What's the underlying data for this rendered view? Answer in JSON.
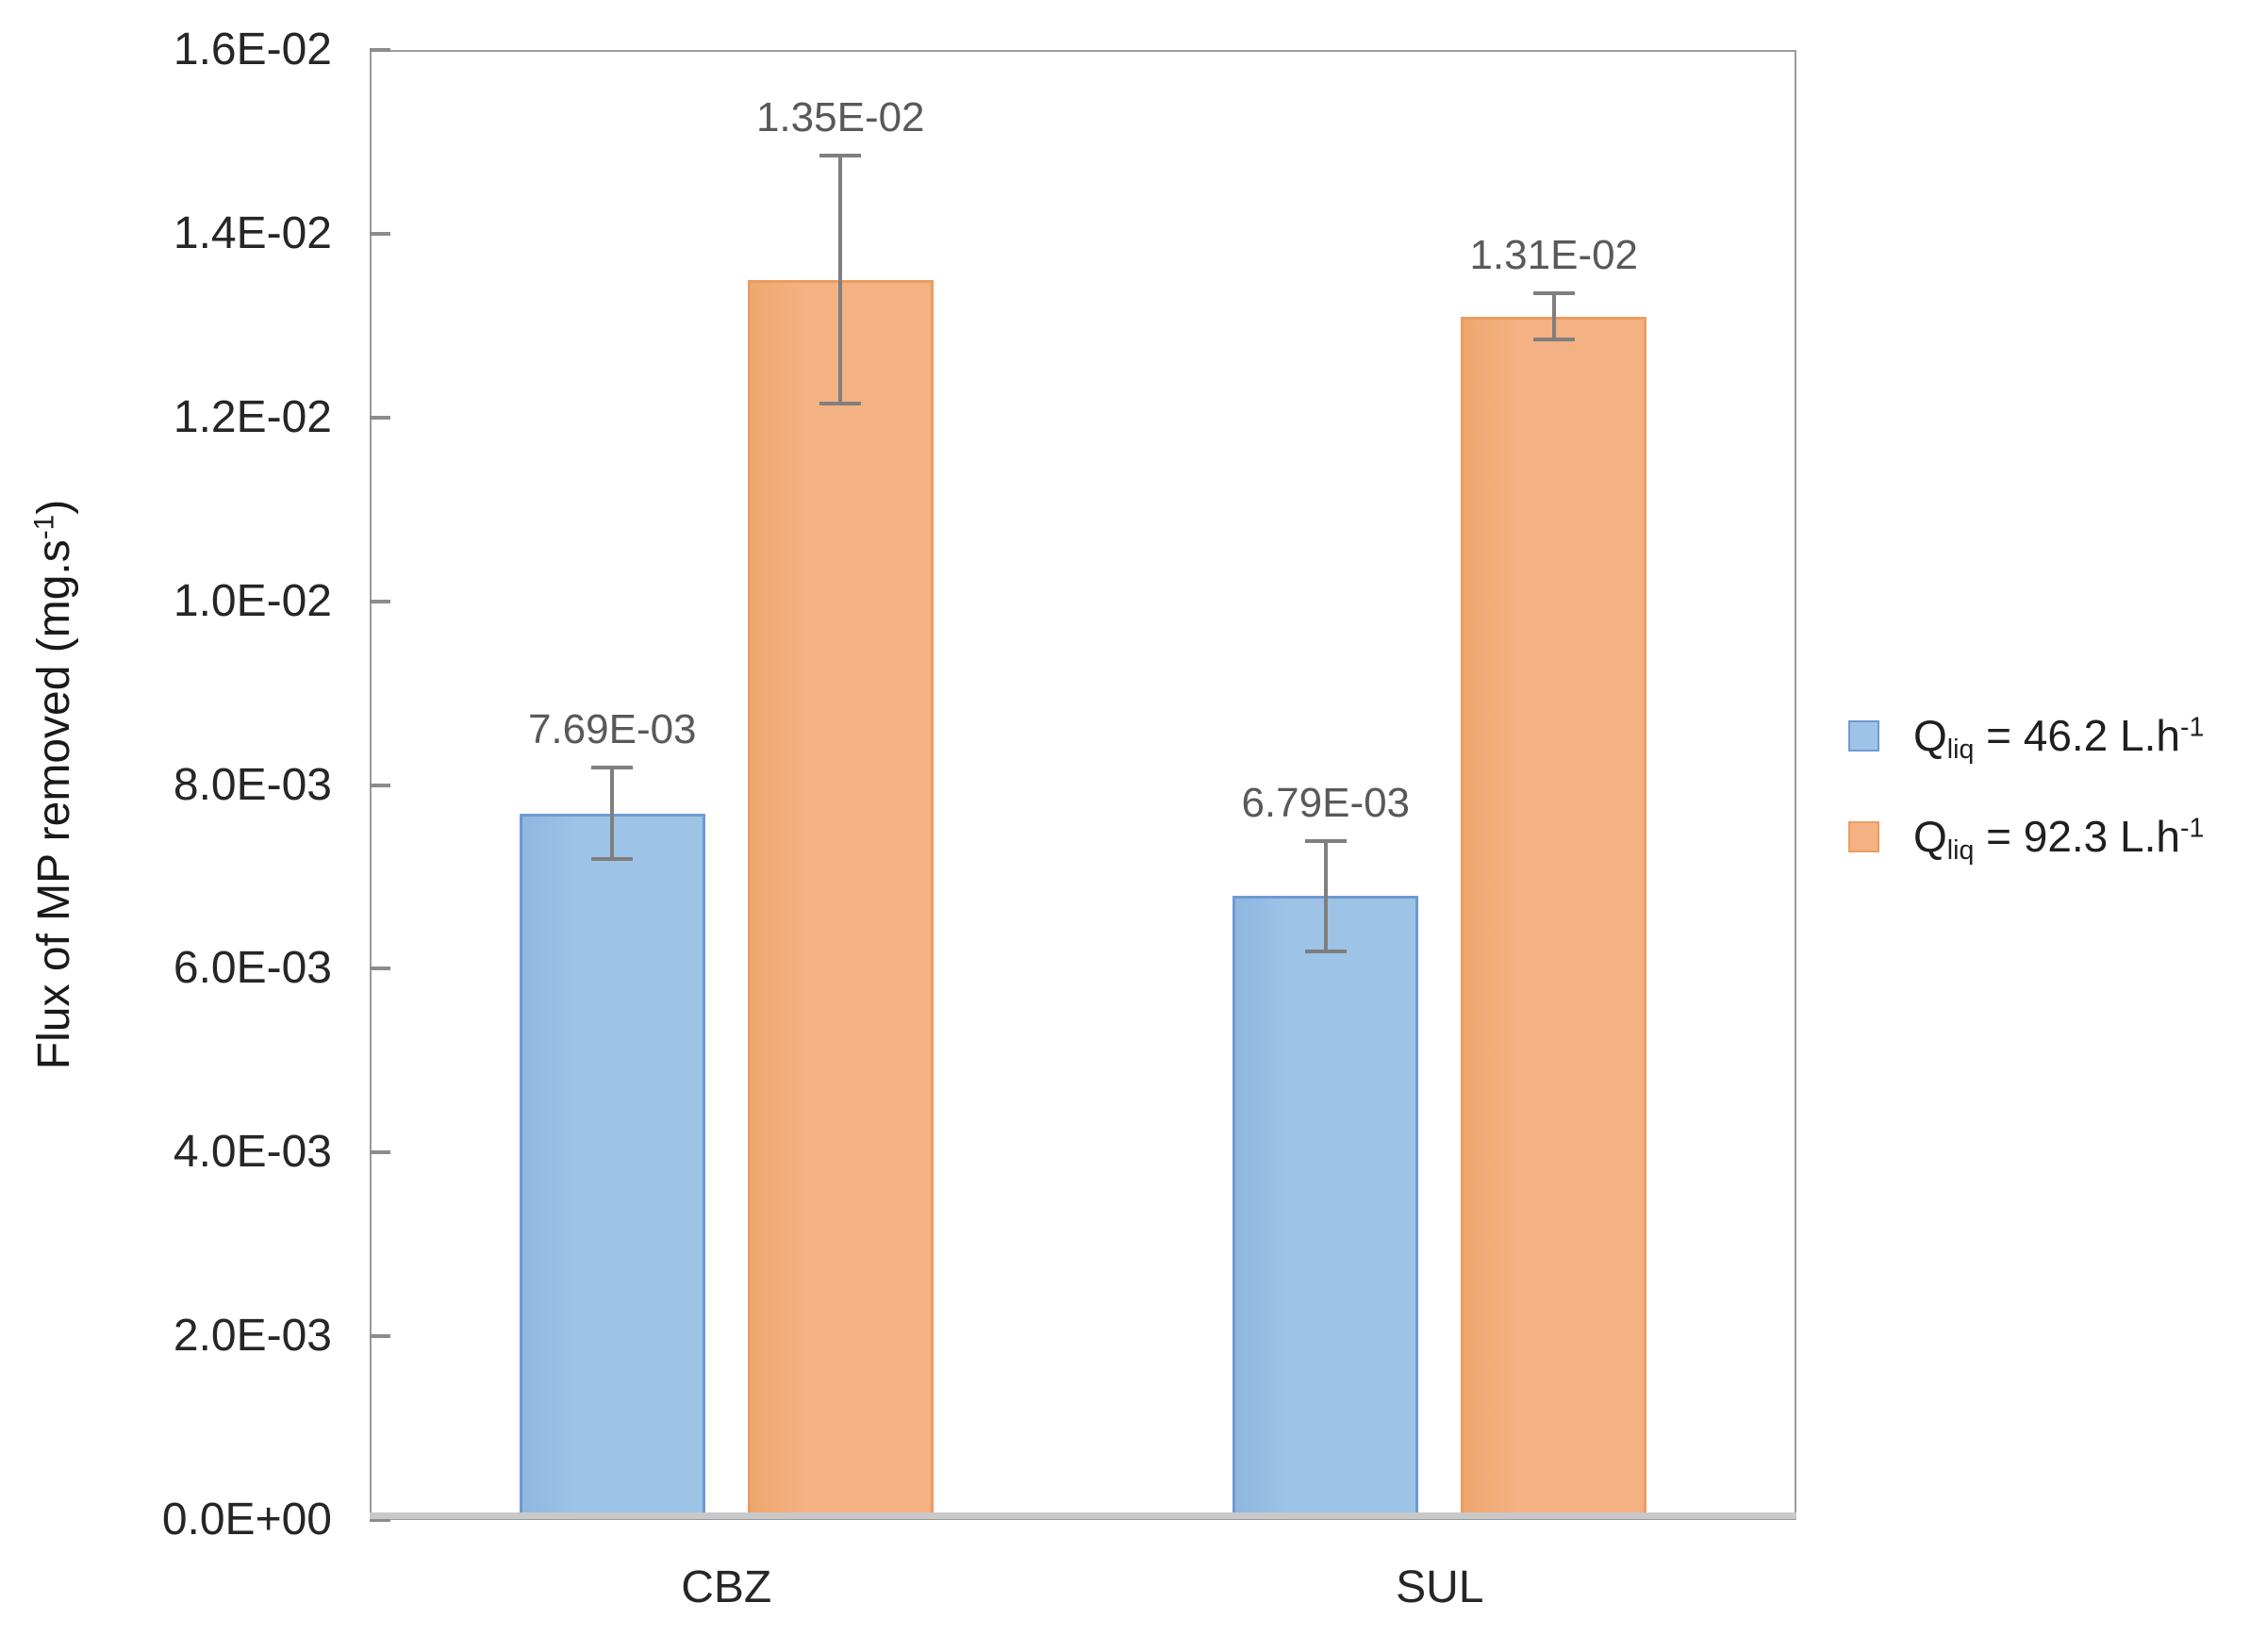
{
  "chart_data": {
    "type": "bar",
    "title": "",
    "xlabel": "",
    "categories": [
      "CBZ",
      "SUL"
    ],
    "ylabel": "Flux of MP removed (mg.s-1)",
    "ylabel_parts": {
      "pre": "Flux of MP removed (mg.s",
      "sup": "-1",
      "post": ")"
    },
    "ylim": [
      0,
      0.016
    ],
    "ytick_labels": [
      "0.0E+00",
      "2.0E-03",
      "4.0E-03",
      "6.0E-03",
      "8.0E-03",
      "1.0E-02",
      "1.2E-02",
      "1.4E-02",
      "1.6E-02"
    ],
    "grid": "off",
    "legend_position": "right",
    "series": [
      {
        "name": "Qliq = 46.2 L.h-1",
        "label_parts": {
          "base": "Q",
          "sub": "liq",
          "mid": " = 46.2 L.h",
          "sup": "-1"
        },
        "fill": "#9DC3E6",
        "fill_edge": "#8FB7E0",
        "border": "#6C9BD2",
        "values": [
          0.00769,
          0.00679
        ],
        "value_labels": [
          "7.69E-03",
          "6.79E-03"
        ],
        "errors": [
          0.0005,
          0.0006
        ]
      },
      {
        "name": "Qliq = 92.3 L.h-1",
        "label_parts": {
          "base": "Q",
          "sub": "liq",
          "mid": " = 92.3 L.h",
          "sup": "-1"
        },
        "fill": "#F4B183",
        "fill_edge": "#EFA76F",
        "border": "#EC9C60",
        "values": [
          0.0135,
          0.0131
        ],
        "value_labels": [
          "1.35E-02",
          "1.31E-02"
        ],
        "errors": [
          0.00135,
          0.00025
        ]
      }
    ],
    "colors": {
      "error_bar": "#7f7f7f",
      "axis_border": "#9a9a9a",
      "baseline": "#c9c9c9",
      "tick_text": "#262626",
      "data_label_text": "#595959"
    }
  }
}
